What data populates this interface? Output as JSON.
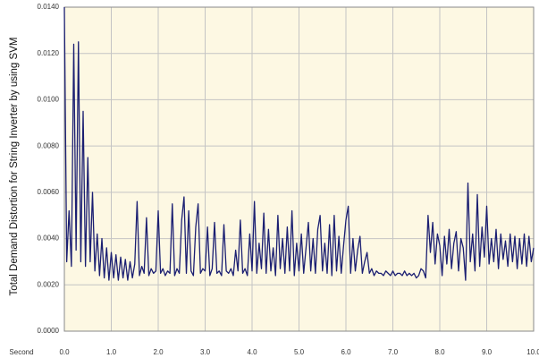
{
  "chart_data": {
    "type": "line",
    "y_label": "Total Demand Distortion for String Inverter by using SVM",
    "x_label": "Second",
    "xlim": [
      0,
      10
    ],
    "ylim": [
      0,
      0.014
    ],
    "xticks": [
      {
        "value": 0,
        "label": "0.0"
      },
      {
        "value": 1,
        "label": "1.0"
      },
      {
        "value": 2,
        "label": "2.0"
      },
      {
        "value": 3,
        "label": "3.0"
      },
      {
        "value": 4,
        "label": "4.0"
      },
      {
        "value": 5,
        "label": "5.0"
      },
      {
        "value": 6,
        "label": "6.0"
      },
      {
        "value": 7,
        "label": "7.0"
      },
      {
        "value": 8,
        "label": "8.0"
      },
      {
        "value": 9,
        "label": "9.0"
      },
      {
        "value": 10,
        "label": "10.0"
      }
    ],
    "yticks": [
      {
        "value": 0,
        "label": "0.0000"
      },
      {
        "value": 0.002,
        "label": "0.0020"
      },
      {
        "value": 0.004,
        "label": "0.0040"
      },
      {
        "value": 0.006,
        "label": "0.0060"
      },
      {
        "value": 0.008,
        "label": "0.0080"
      },
      {
        "value": 0.01,
        "label": "0.0100"
      },
      {
        "value": 0.012,
        "label": "0.0120"
      },
      {
        "value": 0.014,
        "label": "0.0140"
      }
    ],
    "grid": true,
    "x": [
      0,
      0.05,
      0.1,
      0.15,
      0.2,
      0.25,
      0.3,
      0.35,
      0.4,
      0.45,
      0.5,
      0.55,
      0.6,
      0.65,
      0.7,
      0.75,
      0.8,
      0.85,
      0.9,
      0.95,
      1,
      1.05,
      1.1,
      1.15,
      1.2,
      1.25,
      1.3,
      1.35,
      1.4,
      1.45,
      1.5,
      1.55,
      1.6,
      1.65,
      1.7,
      1.75,
      1.8,
      1.85,
      1.9,
      1.95,
      2,
      2.05,
      2.1,
      2.15,
      2.2,
      2.25,
      2.3,
      2.35,
      2.4,
      2.45,
      2.5,
      2.55,
      2.6,
      2.65,
      2.7,
      2.75,
      2.8,
      2.85,
      2.9,
      2.95,
      3,
      3.05,
      3.1,
      3.15,
      3.2,
      3.25,
      3.3,
      3.35,
      3.4,
      3.45,
      3.5,
      3.55,
      3.6,
      3.65,
      3.7,
      3.75,
      3.8,
      3.85,
      3.9,
      3.95,
      4,
      4.05,
      4.1,
      4.15,
      4.2,
      4.25,
      4.3,
      4.35,
      4.4,
      4.45,
      4.5,
      4.55,
      4.6,
      4.65,
      4.7,
      4.75,
      4.8,
      4.85,
      4.9,
      4.95,
      5,
      5.05,
      5.1,
      5.15,
      5.2,
      5.25,
      5.3,
      5.35,
      5.4,
      5.45,
      5.5,
      5.55,
      5.6,
      5.65,
      5.7,
      5.75,
      5.8,
      5.85,
      5.9,
      5.95,
      6,
      6.05,
      6.1,
      6.15,
      6.2,
      6.25,
      6.3,
      6.35,
      6.4,
      6.45,
      6.5,
      6.55,
      6.6,
      6.65,
      6.7,
      6.75,
      6.8,
      6.85,
      6.9,
      6.95,
      7,
      7.05,
      7.1,
      7.15,
      7.2,
      7.25,
      7.3,
      7.35,
      7.4,
      7.45,
      7.5,
      7.55,
      7.6,
      7.65,
      7.7,
      7.75,
      7.8,
      7.85,
      7.9,
      7.95,
      8,
      8.05,
      8.1,
      8.15,
      8.2,
      8.25,
      8.3,
      8.35,
      8.4,
      8.45,
      8.5,
      8.55,
      8.6,
      8.65,
      8.7,
      8.75,
      8.8,
      8.85,
      8.9,
      8.95,
      9,
      9.05,
      9.1,
      9.15,
      9.2,
      9.25,
      9.3,
      9.35,
      9.4,
      9.45,
      9.5,
      9.55,
      9.6,
      9.65,
      9.7,
      9.75,
      9.8,
      9.85,
      9.9,
      9.95,
      10
    ],
    "series": [
      {
        "color": "#1b1f72",
        "values": [
          0.014,
          0.003,
          0.0052,
          0.0028,
          0.0124,
          0.0035,
          0.0125,
          0.003,
          0.0095,
          0.0028,
          0.0075,
          0.003,
          0.006,
          0.0026,
          0.0042,
          0.0024,
          0.004,
          0.0023,
          0.0036,
          0.0022,
          0.0034,
          0.0023,
          0.0033,
          0.0022,
          0.0032,
          0.0023,
          0.0031,
          0.0022,
          0.003,
          0.0023,
          0.0029,
          0.0056,
          0.0024,
          0.0028,
          0.0025,
          0.0049,
          0.0024,
          0.0027,
          0.0025,
          0.0026,
          0.0052,
          0.0025,
          0.0027,
          0.0024,
          0.0026,
          0.0025,
          0.0055,
          0.0024,
          0.0027,
          0.0025,
          0.0048,
          0.0058,
          0.0025,
          0.0052,
          0.0026,
          0.0024,
          0.0045,
          0.0055,
          0.0025,
          0.0027,
          0.0026,
          0.0045,
          0.0024,
          0.0027,
          0.0047,
          0.0025,
          0.0026,
          0.0024,
          0.0046,
          0.0026,
          0.0025,
          0.0027,
          0.0024,
          0.0035,
          0.0026,
          0.0048,
          0.0025,
          0.0027,
          0.0024,
          0.0042,
          0.0026,
          0.0056,
          0.0025,
          0.0038,
          0.0027,
          0.0051,
          0.0025,
          0.0044,
          0.0026,
          0.0036,
          0.0024,
          0.005,
          0.0027,
          0.004,
          0.0025,
          0.0045,
          0.0026,
          0.0052,
          0.0024,
          0.0038,
          0.0026,
          0.0042,
          0.0025,
          0.0036,
          0.0047,
          0.0026,
          0.004,
          0.0025,
          0.0044,
          0.005,
          0.0026,
          0.0038,
          0.0025,
          0.0046,
          0.0024,
          0.005,
          0.0026,
          0.0041,
          0.0025,
          0.0037,
          0.0048,
          0.0054,
          0.0025,
          0.004,
          0.0026,
          0.0035,
          0.0041,
          0.0025,
          0.003,
          0.0034,
          0.0025,
          0.0027,
          0.0024,
          0.0026,
          0.0025,
          0.0025,
          0.0024,
          0.0026,
          0.0025,
          0.0024,
          0.0026,
          0.0024,
          0.0025,
          0.0025,
          0.0024,
          0.0026,
          0.0024,
          0.0025,
          0.0024,
          0.0025,
          0.0023,
          0.0024,
          0.0027,
          0.0026,
          0.0023,
          0.005,
          0.0034,
          0.0047,
          0.0029,
          0.0042,
          0.0037,
          0.0024,
          0.0041,
          0.0029,
          0.0044,
          0.0027,
          0.0038,
          0.0043,
          0.0026,
          0.004,
          0.0036,
          0.0022,
          0.0064,
          0.003,
          0.0042,
          0.0026,
          0.0059,
          0.0028,
          0.0045,
          0.0032,
          0.0054,
          0.0029,
          0.004,
          0.003,
          0.0044,
          0.0027,
          0.0042,
          0.0031,
          0.0039,
          0.0028,
          0.0042,
          0.003,
          0.0041,
          0.0027,
          0.004,
          0.0029,
          0.0042,
          0.0028,
          0.0041,
          0.003,
          0.0036
        ]
      }
    ]
  }
}
